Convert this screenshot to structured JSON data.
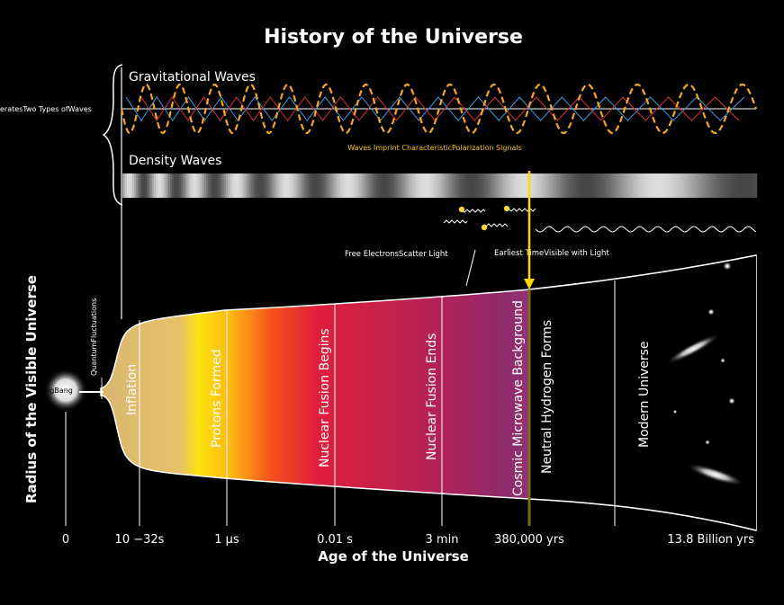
{
  "title": "History of the Universe",
  "y_axis_label": "Radius of the Visible Universe",
  "x_axis_label": "Age of the Universe",
  "left_note": "eratesTwo Types ofWaves",
  "waves": {
    "gravitational_label": "Gravitational Waves",
    "density_label": "Density Waves",
    "polarization_note": "Waves Imprint CharacteristicPolarization Signals"
  },
  "scatter": {
    "free_electrons": "Free ElectronsScatter Light",
    "earliest_time": "Earliest TimeVisible with Light"
  },
  "big_bang_label": "igBang",
  "quantum_label": "QuantumFluctuations",
  "epochs": [
    {
      "key": "inflation",
      "label": "Inflation"
    },
    {
      "key": "protons",
      "label": "Protons Formed"
    },
    {
      "key": "fusion-begins",
      "label": "Nuclear Fusion Begins"
    },
    {
      "key": "fusion-ends",
      "label": "Nuclear Fusion Ends"
    },
    {
      "key": "cmb",
      "label": "Cosmic Microwave Background"
    },
    {
      "key": "neutral-h",
      "label": "Neutral Hydrogen Forms"
    },
    {
      "key": "modern",
      "label": "Modern Universe"
    }
  ],
  "ticks": [
    "0",
    "10 −32s",
    "1 µs",
    "0.01 s",
    "3 min",
    "380,000 yrs",
    "13.8 Billion yrs"
  ],
  "colors": {
    "wave_orange": "#f5a623",
    "arrow_yellow": "#ffd700",
    "inflation_gold": "#d8b468",
    "epoch_red": "#e0213a",
    "epoch_purple": "#8e2a6e",
    "epoch_mauve": "#a86d8a"
  }
}
